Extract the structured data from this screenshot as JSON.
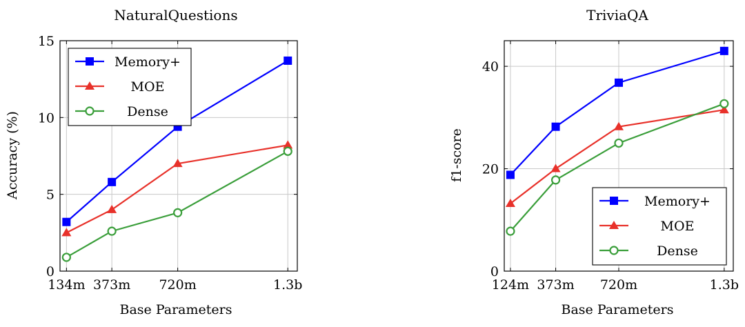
{
  "chart_data": [
    {
      "type": "line",
      "title": "NaturalQuestions",
      "xlabel": "Base Parameters",
      "ylabel": "Accuracy (%)",
      "x": [
        134,
        373,
        720,
        1300
      ],
      "xtick_labels": [
        "134m",
        "373m",
        "720m",
        "1.3b"
      ],
      "xlim": [
        100,
        1350
      ],
      "ylim": [
        0,
        15
      ],
      "yticks": [
        0,
        5,
        10,
        15
      ],
      "ytick_labels": [
        "0",
        "5",
        "10",
        "15"
      ],
      "grid": true,
      "legend": "top-left",
      "series": [
        {
          "name": "Memory+",
          "color": "#0000ff",
          "marker": "square",
          "values": [
            3.2,
            5.8,
            9.4,
            13.7
          ]
        },
        {
          "name": "MOE",
          "color": "#e8312a",
          "marker": "triangle",
          "values": [
            2.5,
            4.0,
            7.0,
            8.2
          ]
        },
        {
          "name": "Dense",
          "color": "#3a9e3a",
          "marker": "circle-open",
          "values": [
            0.9,
            2.6,
            3.8,
            7.8
          ]
        }
      ]
    },
    {
      "type": "line",
      "title": "TriviaQA",
      "xlabel": "Base Parameters",
      "ylabel": "f1-score",
      "x": [
        124,
        373,
        720,
        1300
      ],
      "xtick_labels": [
        "124m",
        "373m",
        "720m",
        "1.3b"
      ],
      "xlim": [
        90,
        1350
      ],
      "ylim": [
        0,
        45
      ],
      "yticks": [
        0,
        20,
        40
      ],
      "ytick_labels": [
        "0",
        "20",
        "40"
      ],
      "grid": true,
      "legend": "bottom-right",
      "series": [
        {
          "name": "Memory+",
          "color": "#0000ff",
          "marker": "square",
          "values": [
            18.8,
            28.2,
            36.8,
            43.0
          ]
        },
        {
          "name": "MOE",
          "color": "#e8312a",
          "marker": "triangle",
          "values": [
            13.2,
            20.0,
            28.2,
            31.5
          ]
        },
        {
          "name": "Dense",
          "color": "#3a9e3a",
          "marker": "circle-open",
          "values": [
            7.8,
            17.8,
            25.0,
            32.7
          ]
        }
      ]
    }
  ]
}
